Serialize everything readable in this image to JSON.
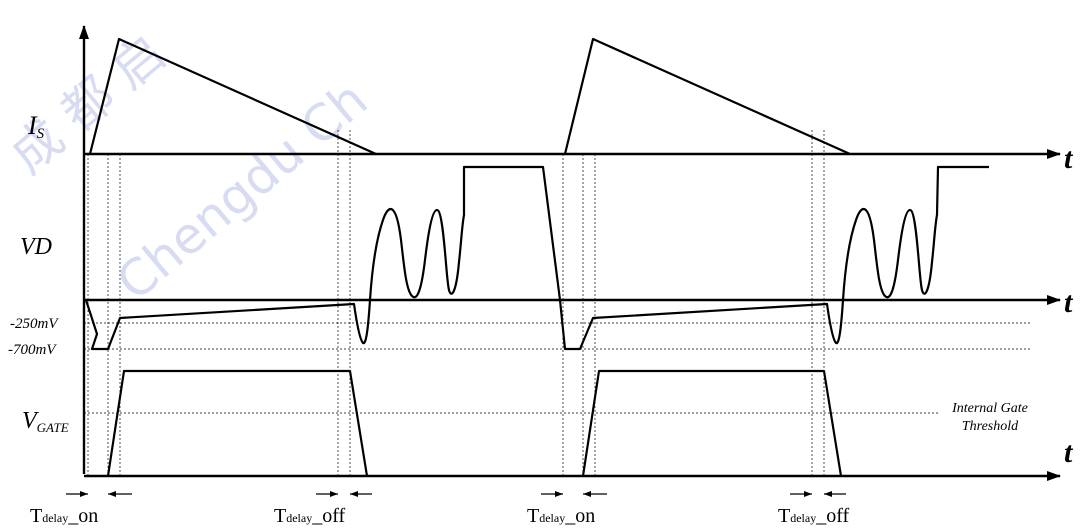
{
  "watermark": {
    "chinese": "成 都 启",
    "english": "Chengdu Ch"
  },
  "signals": {
    "is_label": "I",
    "is_sub": "S",
    "vd_label": "VD",
    "vgate_label": "V",
    "vgate_sub": "GATE"
  },
  "levels": {
    "l250": "-250mV",
    "l700": "-700mV"
  },
  "time_label": "t",
  "threshold": {
    "line1": "Internal Gate",
    "line2": "Threshold"
  },
  "delays": {
    "on_prefix": "T",
    "on_sub": "delay",
    "on_suffix": "_on",
    "off_prefix": "T",
    "off_sub": "delay",
    "off_suffix": "_off"
  }
}
